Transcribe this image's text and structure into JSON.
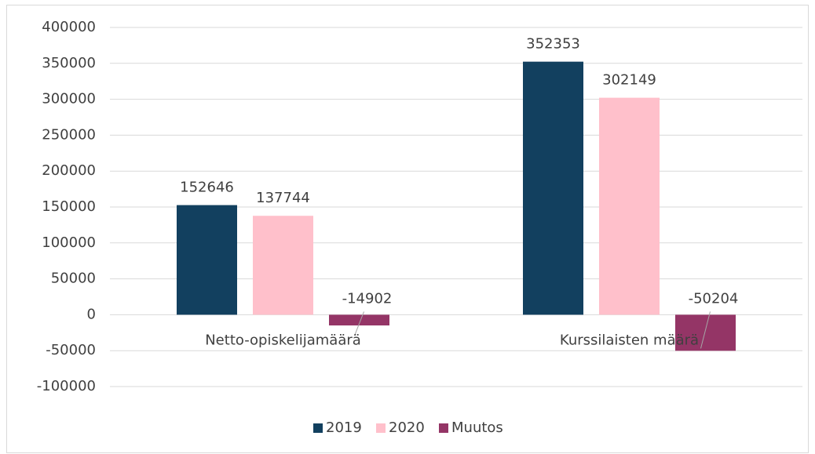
{
  "chart_data": {
    "type": "bar",
    "categories": [
      "Netto-opiskelijamäärä",
      "Kurssilaisten määrä"
    ],
    "series": [
      {
        "name": "2019",
        "color": "#12405f",
        "values": [
          152646,
          352353
        ]
      },
      {
        "name": "2020",
        "color": "#ffc0cb",
        "values": [
          137744,
          302149
        ]
      },
      {
        "name": "Muutos",
        "color": "#943566",
        "values": [
          -14902,
          -50204
        ]
      }
    ],
    "ylim": [
      -100000,
      400000
    ],
    "yticks": [
      -100000,
      -50000,
      0,
      50000,
      100000,
      150000,
      200000,
      250000,
      300000,
      350000,
      400000
    ],
    "grid": true,
    "legend": "bottom"
  }
}
